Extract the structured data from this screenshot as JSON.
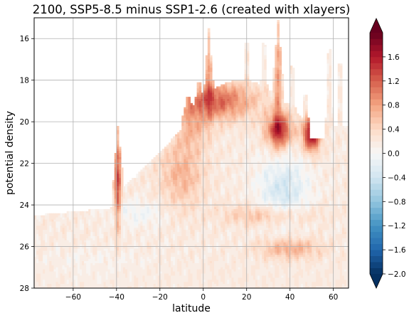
{
  "chart_data": {
    "type": "heatmap",
    "title": "2100, SSP5-8.5 minus SSP1-2.6 (created with xlayers)",
    "xlabel": "latitude",
    "ylabel": "potential density",
    "xlim": [
      -78,
      67
    ],
    "ylim": [
      28,
      15
    ],
    "y_inverted": true,
    "grid": true,
    "x_ticks": [
      -60,
      -40,
      -20,
      0,
      20,
      40,
      60
    ],
    "x_tick_labels": [
      "−60",
      "−40",
      "−20",
      "0",
      "20",
      "40",
      "60"
    ],
    "y_ticks": [
      16,
      18,
      20,
      22,
      24,
      26,
      28
    ],
    "y_tick_labels": [
      "16",
      "18",
      "20",
      "22",
      "24",
      "26",
      "28"
    ],
    "colormap": "RdBu_r",
    "colorbar": {
      "vmin": -2.0,
      "vmax": 2.0,
      "levels": 40,
      "extend": "both",
      "ticks": [
        -2.0,
        -1.6,
        -1.2,
        -0.8,
        -0.4,
        0.0,
        0.4,
        0.8,
        1.2,
        1.6
      ],
      "tick_labels": [
        "−2.0",
        "−1.6",
        "−1.2",
        "−0.8",
        "−0.4",
        "0.0",
        "0.4",
        "0.8",
        "1.2",
        "1.6"
      ]
    },
    "features": [
      {
        "desc": "strong positive anomaly column",
        "lat": [
          -41,
          -38
        ],
        "sigma": [
          20.2,
          24.7
        ],
        "value": 2.0
      },
      {
        "desc": "strong positive anomaly spike",
        "lat": [
          1.5,
          3.5
        ],
        "sigma": [
          15.5,
          19.3
        ],
        "value": 2.0
      },
      {
        "desc": "strong positive anomaly spike",
        "lat": [
          33,
          36
        ],
        "sigma": [
          15.1,
          20.5
        ],
        "value": 2.0
      },
      {
        "desc": "strong positive anomaly band",
        "lat": [
          46,
          53
        ],
        "sigma": [
          19.6,
          21.6
        ],
        "value": 2.0
      },
      {
        "desc": "positive anomaly near-surface band",
        "lat": [
          -12,
          42
        ],
        "sigma": [
          18.0,
          20.0
        ],
        "value": 1.2
      },
      {
        "desc": "negative anomaly region",
        "lat": [
          25,
          50
        ],
        "sigma": [
          21.5,
          25.0
        ],
        "value": -0.5
      },
      {
        "desc": "positive anomaly deep band",
        "lat": [
          30,
          60
        ],
        "sigma": [
          25.8,
          26.8
        ],
        "value": 0.9
      }
    ]
  }
}
